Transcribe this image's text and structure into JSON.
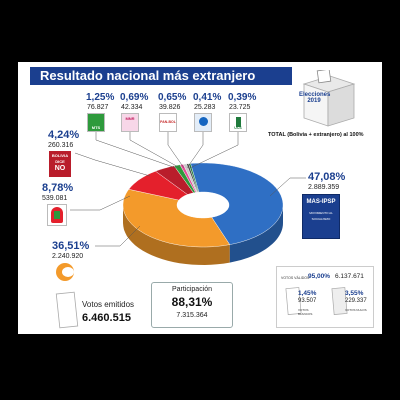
{
  "title": "Resultado nacional más extranjero",
  "ballot": {
    "text": "Elecciones 2019"
  },
  "total_note": "TOTAL (Bolivia + extranjero) al 100%",
  "chart_data": {
    "type": "pie",
    "title": "Resultado nacional más extranjero",
    "slices": [
      {
        "party": "MAS-IPSP",
        "percent": 47.08,
        "votes": "2.889.359",
        "color": "#2f6fc4"
      },
      {
        "party": "Comunidad Ciudadana",
        "percent": 36.51,
        "votes": "2.240.920",
        "color": "#f39a2b"
      },
      {
        "party": "PDC",
        "percent": 8.78,
        "votes": "539.081",
        "color": "#e4202c"
      },
      {
        "party": "Bolivia Dice No",
        "percent": 4.24,
        "votes": "260.316",
        "color": "#b91d2b"
      },
      {
        "party": "MTS",
        "percent": 1.25,
        "votes": "76.827",
        "color": "#2e9a3c"
      },
      {
        "party": "MNR",
        "percent": 0.69,
        "votes": "42.334",
        "color": "#e64d9a"
      },
      {
        "party": "PAN-BOL",
        "percent": 0.65,
        "votes": "39.826",
        "color": "#c8c8c8"
      },
      {
        "party": "FPV",
        "percent": 0.41,
        "votes": "25.283",
        "color": "#4a4a4a"
      },
      {
        "party": "UCS",
        "percent": 0.39,
        "votes": "23.725",
        "color": "#1f7a3c"
      }
    ]
  },
  "labels": {
    "mas": {
      "pct": "47,08%",
      "votes": "2.889.359",
      "logo": "MAS-IPSP",
      "sub1": "MOVIMIENTO AL",
      "sub2": "SOCIALISMO"
    },
    "cc": {
      "pct": "36,51%",
      "votes": "2.240.920"
    },
    "pdc": {
      "pct": "8,78%",
      "votes": "539.081"
    },
    "no": {
      "pct": "4,24%",
      "votes": "260.316",
      "l1": "BOLIVIA",
      "l2": "DICE",
      "l3": "NO"
    },
    "mts": {
      "pct": "1,25%",
      "votes": "76.827",
      "logo": "MTS"
    },
    "mnr": {
      "pct": "0,69%",
      "votes": "42.334",
      "logo": "MNR"
    },
    "panbol": {
      "pct": "0,65%",
      "votes": "39.826",
      "logo": "PAN-BOL"
    },
    "fpv": {
      "pct": "0,41%",
      "votes": "25.283"
    },
    "ucs": {
      "pct": "0,39%",
      "votes": "23.725",
      "logo": "UCS"
    }
  },
  "votos_emitidos": {
    "label": "Votos emitidos",
    "value": "6.460.515"
  },
  "participacion": {
    "label": "Participación",
    "pct": "88,31%",
    "votes": "7.315.364"
  },
  "votos_validos": {
    "label": "VOTOS VÁLIDOS",
    "pct": "95,00%",
    "votes": "6.137.671"
  },
  "blancos": {
    "pct": "1,45%",
    "votes": "93.507",
    "label": "VOTOS BLANCOS"
  },
  "nulos": {
    "pct": "3,55%",
    "votes": "229.337",
    "label": "VOTOS NULOS"
  }
}
